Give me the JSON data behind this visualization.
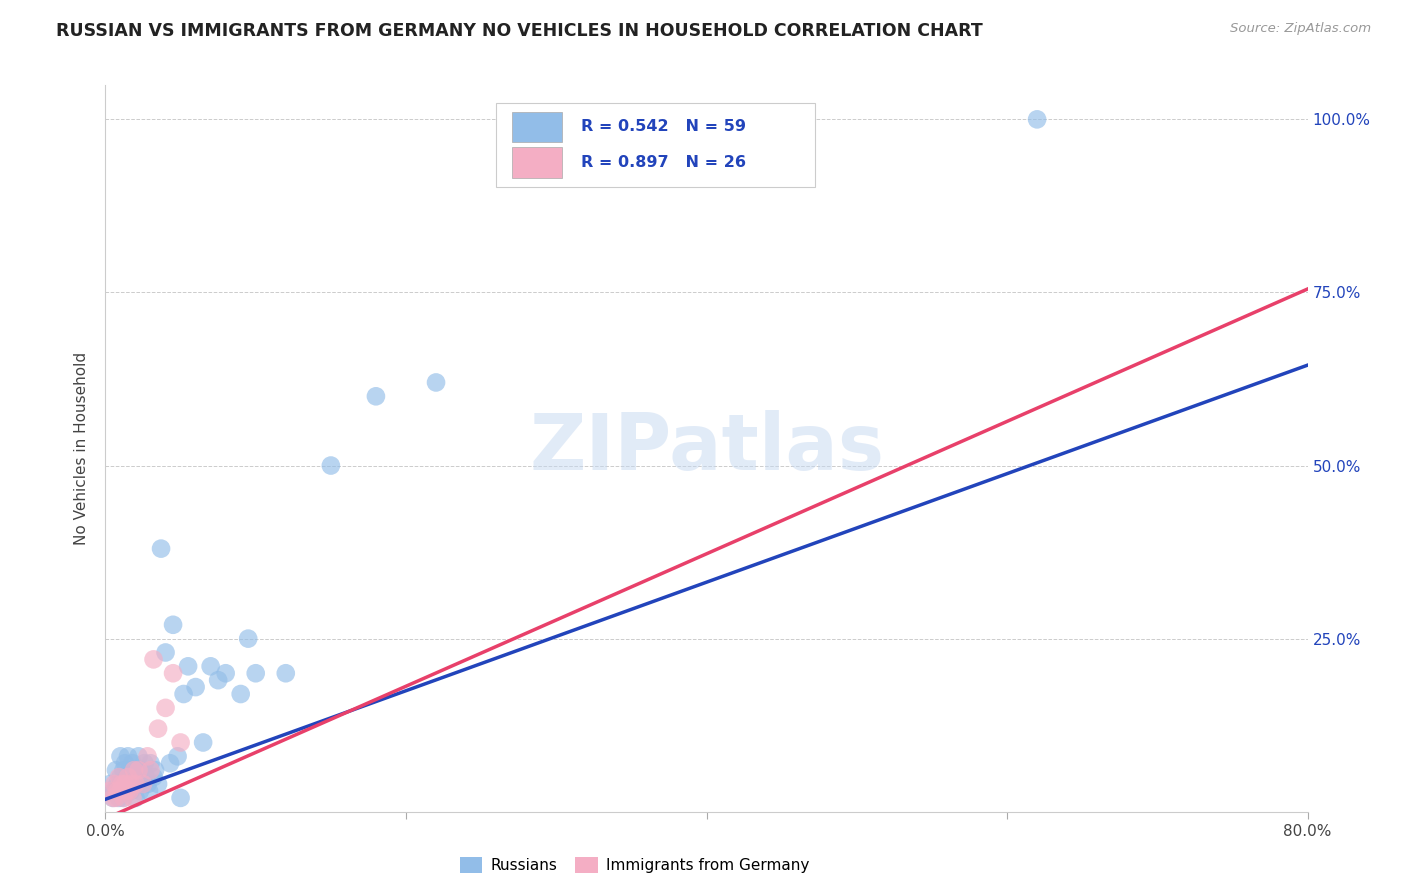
{
  "title": "RUSSIAN VS IMMIGRANTS FROM GERMANY NO VEHICLES IN HOUSEHOLD CORRELATION CHART",
  "source": "Source: ZipAtlas.com",
  "ylabel": "No Vehicles in Household",
  "xlim": [
    0.0,
    0.8
  ],
  "ylim": [
    0.0,
    1.05
  ],
  "xtick_vals": [
    0.0,
    0.2,
    0.4,
    0.6,
    0.8
  ],
  "xticklabels": [
    "0.0%",
    "",
    "",
    "",
    "80.0%"
  ],
  "ytick_vals": [
    0.0,
    0.25,
    0.5,
    0.75,
    1.0
  ],
  "yticklabels_right": [
    "",
    "25.0%",
    "50.0%",
    "75.0%",
    "100.0%"
  ],
  "russian_color": "#92bde8",
  "germany_color": "#f4aec4",
  "trendline_russian_color": "#2244bb",
  "trendline_germany_color": "#e8406a",
  "legend_text_color": "#2244bb",
  "legend_r_russian": "R = 0.542",
  "legend_n_russian": "N = 59",
  "legend_r_germany": "R = 0.897",
  "legend_n_germany": "N = 26",
  "legend_label_russian": "Russians",
  "legend_label_germany": "Immigrants from Germany",
  "watermark": "ZIPatlas",
  "russian_x": [
    0.003,
    0.005,
    0.006,
    0.007,
    0.008,
    0.009,
    0.01,
    0.01,
    0.011,
    0.012,
    0.012,
    0.013,
    0.013,
    0.014,
    0.015,
    0.015,
    0.016,
    0.016,
    0.017,
    0.018,
    0.018,
    0.019,
    0.02,
    0.02,
    0.021,
    0.022,
    0.022,
    0.023,
    0.024,
    0.025,
    0.026,
    0.027,
    0.028,
    0.029,
    0.03,
    0.032,
    0.033,
    0.035,
    0.037,
    0.04,
    0.043,
    0.045,
    0.048,
    0.05,
    0.052,
    0.055,
    0.06,
    0.065,
    0.07,
    0.075,
    0.08,
    0.09,
    0.095,
    0.1,
    0.12,
    0.15,
    0.18,
    0.22,
    0.62
  ],
  "russian_y": [
    0.04,
    0.02,
    0.03,
    0.06,
    0.04,
    0.02,
    0.05,
    0.08,
    0.03,
    0.06,
    0.02,
    0.04,
    0.07,
    0.03,
    0.05,
    0.08,
    0.04,
    0.06,
    0.03,
    0.05,
    0.07,
    0.04,
    0.06,
    0.02,
    0.05,
    0.04,
    0.08,
    0.03,
    0.06,
    0.04,
    0.07,
    0.05,
    0.04,
    0.03,
    0.07,
    0.05,
    0.06,
    0.04,
    0.38,
    0.23,
    0.07,
    0.27,
    0.08,
    0.02,
    0.17,
    0.21,
    0.18,
    0.1,
    0.21,
    0.19,
    0.2,
    0.17,
    0.25,
    0.2,
    0.2,
    0.5,
    0.6,
    0.62,
    1.0
  ],
  "germany_x": [
    0.003,
    0.005,
    0.006,
    0.007,
    0.008,
    0.009,
    0.01,
    0.011,
    0.012,
    0.013,
    0.014,
    0.015,
    0.016,
    0.017,
    0.018,
    0.019,
    0.02,
    0.022,
    0.025,
    0.028,
    0.03,
    0.032,
    0.035,
    0.04,
    0.045,
    0.05
  ],
  "germany_y": [
    0.03,
    0.02,
    0.04,
    0.02,
    0.03,
    0.05,
    0.03,
    0.04,
    0.02,
    0.04,
    0.03,
    0.05,
    0.03,
    0.04,
    0.02,
    0.06,
    0.04,
    0.06,
    0.04,
    0.08,
    0.06,
    0.22,
    0.12,
    0.15,
    0.2,
    0.1
  ]
}
